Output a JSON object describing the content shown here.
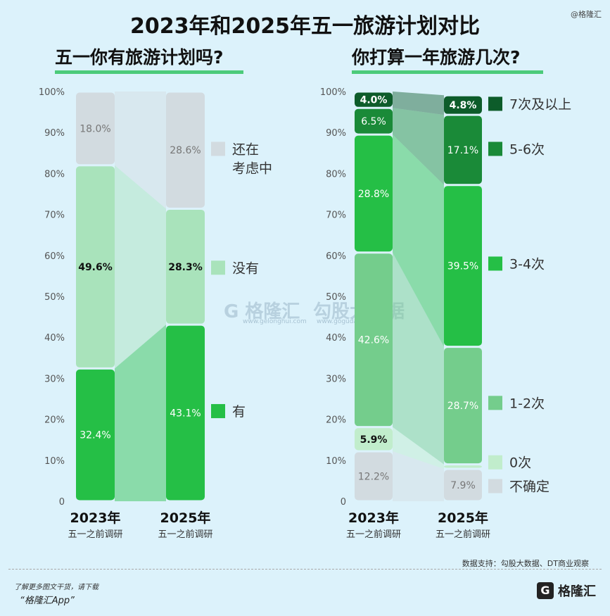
{
  "title": "2023年和2025年五一旅游计划对比",
  "watermark_top": "@格隆汇",
  "center_watermark": {
    "brand": "G 格隆汇",
    "site": "www.gelonghui.com",
    "brand2": "勾股大数据",
    "site2": "www.gogudata.com"
  },
  "source": "数据支持：勾股大数据、DT商业观察",
  "footer": {
    "line1": "了解更多图文干货，请下载",
    "line2": "“格隆汇App”",
    "logo_icon": "G",
    "logo_text": "格隆汇"
  },
  "colors": {
    "dark_green": "#0d5c2a",
    "mid_dark_green": "#1a8a38",
    "bright_green": "#25bf46",
    "mid_green": "#74cd8c",
    "light_green": "#a9e3bb",
    "very_light_green": "#c1edcc",
    "grey": "#d2dbe0",
    "background": "#dcf2fb"
  },
  "chart_data": [
    {
      "type": "bar",
      "stacked": true,
      "title": "五一你有旅游计划吗?",
      "categories": [
        "2023年",
        "2025年"
      ],
      "category_sublabels": [
        "五一之前调研",
        "五一之前调研"
      ],
      "y_ticks": [
        "0",
        "10%",
        "20%",
        "30%",
        "40%",
        "50%",
        "60%",
        "70%",
        "80%",
        "90%",
        "100%"
      ],
      "ylim": [
        0,
        100
      ],
      "series": [
        {
          "name": "有",
          "values": [
            32.4,
            43.1
          ],
          "labels": [
            "32.4%",
            "43.1%"
          ],
          "color": "#25bf46",
          "label_color": "#ffffff",
          "label_bold": false
        },
        {
          "name": "没有",
          "values": [
            49.6,
            28.3
          ],
          "labels": [
            "49.6%",
            "28.3%"
          ],
          "color": "#a9e3bb",
          "label_color": "#111111",
          "label_bold": true
        },
        {
          "name": "还在考虑中",
          "values": [
            18.0,
            28.6
          ],
          "labels": [
            "18.0%",
            "28.6%"
          ],
          "color": "#d2dbe0",
          "label_color": "#777777",
          "label_bold": false
        }
      ],
      "legend": [
        {
          "name": "还在",
          "name2": "考虑中",
          "color": "#d2dbe0",
          "value": 86
        },
        {
          "name": "没有",
          "name2": "",
          "color": "#a9e3bb",
          "value": 57
        },
        {
          "name": "有",
          "name2": "",
          "color": "#25bf46",
          "value": 22
        }
      ]
    },
    {
      "type": "bar",
      "stacked": true,
      "title": "你打算一年旅游几次?",
      "categories": [
        "2023年",
        "2025年"
      ],
      "category_sublabels": [
        "五一之前调研",
        "五一之前调研"
      ],
      "y_ticks": [
        "0",
        "10%",
        "20%",
        "30%",
        "40%",
        "50%",
        "60%",
        "70%",
        "80%",
        "90%",
        "100%"
      ],
      "ylim": [
        0,
        100
      ],
      "series": [
        {
          "name": "不确定",
          "values": [
            12.2,
            7.9
          ],
          "labels": [
            "12.2%",
            "7.9%"
          ],
          "color": "#d2dbe0",
          "label_color": "#777777",
          "label_bold": false
        },
        {
          "name": "0次",
          "values": [
            5.9,
            1.1
          ],
          "labels": [
            "5.9%",
            ""
          ],
          "color": "#c1edcc",
          "label_color": "#111111",
          "label_bold": true
        },
        {
          "name": "1-2次",
          "values": [
            42.6,
            28.7
          ],
          "labels": [
            "42.6%",
            "28.7%"
          ],
          "color": "#74cd8c",
          "label_color": "#ffffff",
          "label_bold": false
        },
        {
          "name": "3-4次",
          "values": [
            28.8,
            39.5
          ],
          "labels": [
            "28.8%",
            "39.5%"
          ],
          "color": "#25bf46",
          "label_color": "#ffffff",
          "label_bold": false
        },
        {
          "name": "5-6次",
          "values": [
            6.5,
            17.1
          ],
          "labels": [
            "6.5%",
            "17.1%"
          ],
          "color": "#1a8a38",
          "label_color": "#ffffff",
          "label_bold": false
        },
        {
          "name": "7次及以上",
          "values": [
            4.0,
            4.8
          ],
          "labels": [
            "4.0%",
            "4.8%"
          ],
          "color": "#0d5c2a",
          "label_color": "#ffffff",
          "label_bold": true
        }
      ],
      "legend": [
        {
          "name": "7次及以上",
          "color": "#0d5c2a",
          "value": 97
        },
        {
          "name": "5-6次",
          "color": "#1a8a38",
          "value": 86
        },
        {
          "name": "3-4次",
          "color": "#25bf46",
          "value": 58
        },
        {
          "name": "1-2次",
          "color": "#74cd8c",
          "value": 24
        },
        {
          "name": "0次",
          "color": "#c1edcc",
          "value": 9.5
        },
        {
          "name": "不确定",
          "color": "#d2dbe0",
          "value": 3.7
        }
      ]
    }
  ]
}
